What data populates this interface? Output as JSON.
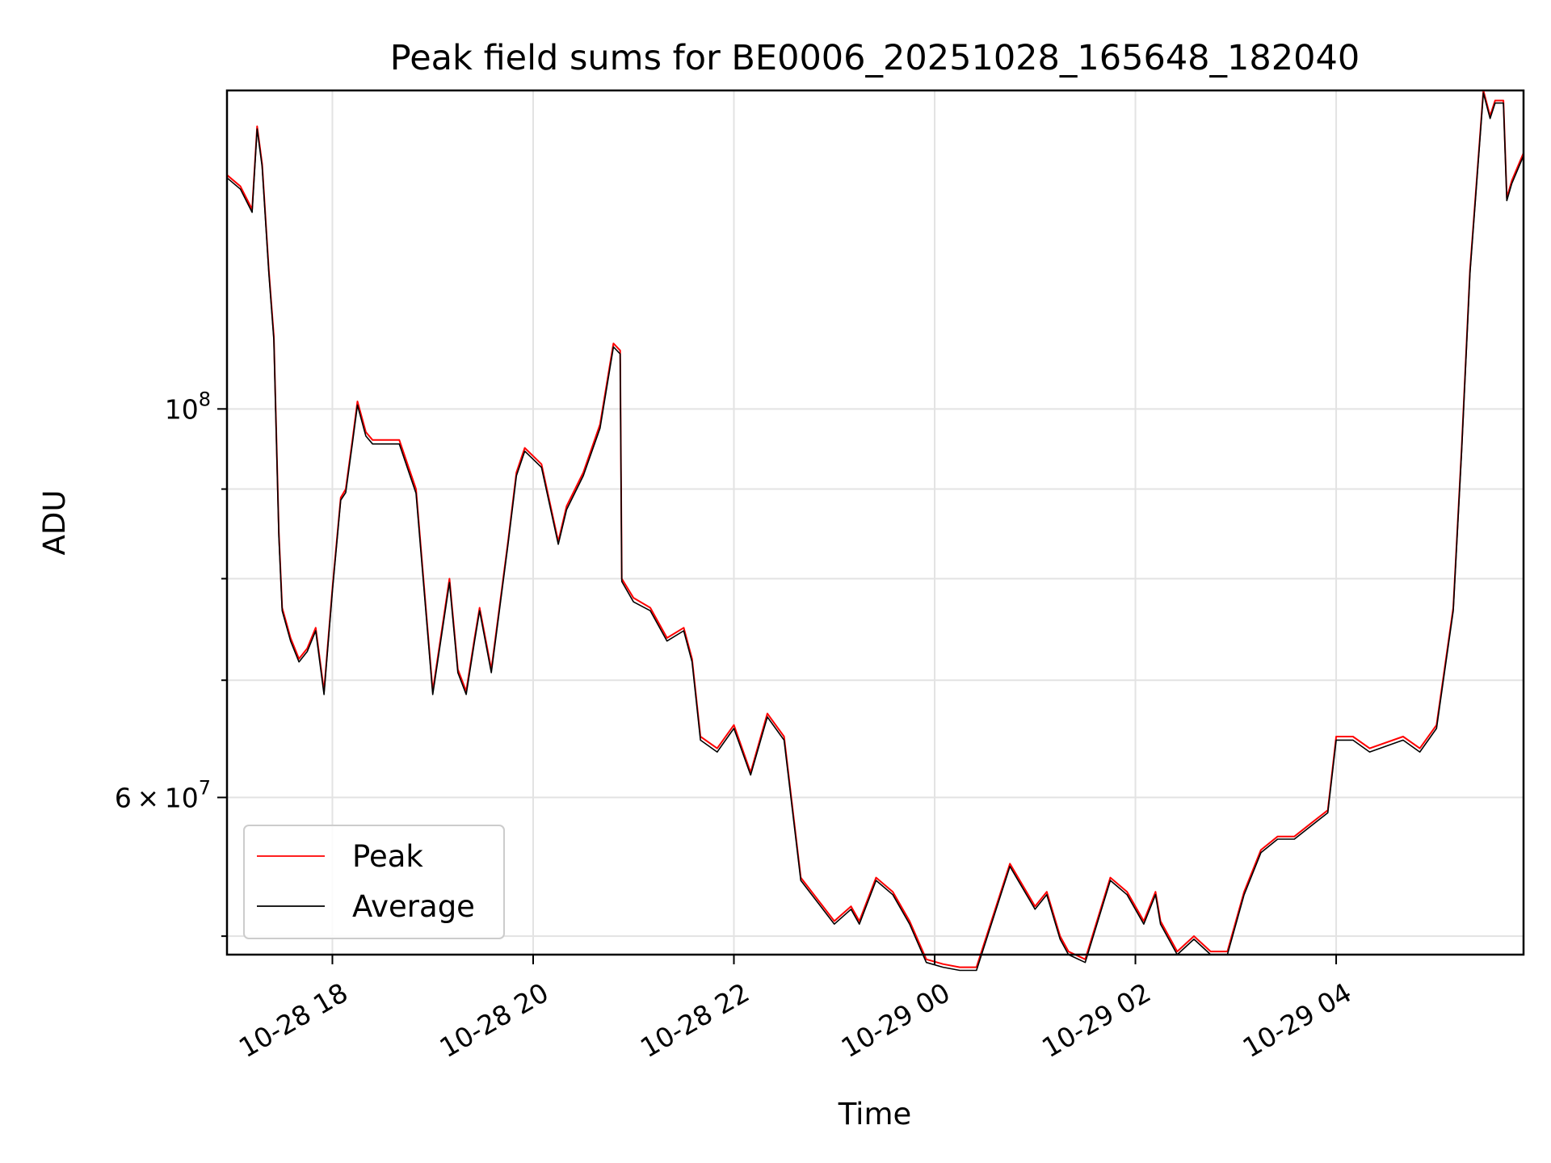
{
  "chart_data": {
    "type": "line",
    "title": "Peak field sums for BE0006_20251028_165648_182040",
    "xlabel": "Time",
    "ylabel": "ADU",
    "x_axis_type": "date",
    "xlim": [
      "2025-10-28 16:57",
      "2025-10-29 05:52"
    ],
    "ylim": [
      48800000,
      152000000
    ],
    "y_scale": "log",
    "grid": true,
    "legend_position": "lower-left",
    "x_ticks": [
      {
        "value": "2025-10-28 18:00",
        "label": "10-28 18"
      },
      {
        "value": "2025-10-28 20:00",
        "label": "10-28 20"
      },
      {
        "value": "2025-10-28 22:00",
        "label": "10-28 22"
      },
      {
        "value": "2025-10-29 00:00",
        "label": "10-29 00"
      },
      {
        "value": "2025-10-29 02:00",
        "label": "10-29 02"
      },
      {
        "value": "2025-10-29 04:00",
        "label": "10-29 04"
      }
    ],
    "y_ticks_major": [
      {
        "value": 100000000,
        "base": "10",
        "exp": "8",
        "mantissa": ""
      },
      {
        "value": 60000000,
        "base": "10",
        "exp": "7",
        "mantissa": "6"
      }
    ],
    "y_ticks_minor": [
      50000000,
      70000000,
      80000000,
      90000000
    ],
    "series": [
      {
        "name": "Peak",
        "color": "#ff0000",
        "x": [
          "2025-10-28 16:57",
          "2025-10-28 17:05",
          "2025-10-28 17:12",
          "2025-10-28 17:15",
          "2025-10-28 17:18",
          "2025-10-28 17:22",
          "2025-10-28 17:25",
          "2025-10-28 17:28",
          "2025-10-28 17:30",
          "2025-10-28 17:35",
          "2025-10-28 17:40",
          "2025-10-28 17:45",
          "2025-10-28 17:50",
          "2025-10-28 17:55",
          "2025-10-28 18:00",
          "2025-10-28 18:05",
          "2025-10-28 18:08",
          "2025-10-28 18:12",
          "2025-10-28 18:15",
          "2025-10-28 18:20",
          "2025-10-28 18:24",
          "2025-10-28 18:30",
          "2025-10-28 18:40",
          "2025-10-28 18:50",
          "2025-10-28 19:00",
          "2025-10-28 19:10",
          "2025-10-28 19:15",
          "2025-10-28 19:20",
          "2025-10-28 19:25",
          "2025-10-28 19:28",
          "2025-10-28 19:35",
          "2025-10-28 19:45",
          "2025-10-28 19:50",
          "2025-10-28 19:55",
          "2025-10-28 20:05",
          "2025-10-28 20:15",
          "2025-10-28 20:20",
          "2025-10-28 20:30",
          "2025-10-28 20:40",
          "2025-10-28 20:48",
          "2025-10-28 20:52",
          "2025-10-28 20:53",
          "2025-10-28 21:00",
          "2025-10-28 21:10",
          "2025-10-28 21:20",
          "2025-10-28 21:30",
          "2025-10-28 21:35",
          "2025-10-28 21:40",
          "2025-10-28 21:50",
          "2025-10-28 22:00",
          "2025-10-28 22:10",
          "2025-10-28 22:20",
          "2025-10-28 22:30",
          "2025-10-28 22:40",
          "2025-10-28 23:00",
          "2025-10-28 23:10",
          "2025-10-28 23:15",
          "2025-10-28 23:25",
          "2025-10-28 23:35",
          "2025-10-28 23:45",
          "2025-10-28 23:55",
          "2025-10-29 00:05",
          "2025-10-29 00:15",
          "2025-10-29 00:25",
          "2025-10-29 00:45",
          "2025-10-29 01:00",
          "2025-10-29 01:07",
          "2025-10-29 01:15",
          "2025-10-29 01:20",
          "2025-10-29 01:30",
          "2025-10-29 01:45",
          "2025-10-29 01:55",
          "2025-10-29 02:05",
          "2025-10-29 02:12",
          "2025-10-29 02:15",
          "2025-10-29 02:25",
          "2025-10-29 02:35",
          "2025-10-29 02:45",
          "2025-10-29 02:55",
          "2025-10-29 03:05",
          "2025-10-29 03:15",
          "2025-10-29 03:25",
          "2025-10-29 03:35",
          "2025-10-29 03:45",
          "2025-10-29 03:55",
          "2025-10-29 04:00",
          "2025-10-29 04:10",
          "2025-10-29 04:20",
          "2025-10-29 04:40",
          "2025-10-29 04:50",
          "2025-10-29 05:00",
          "2025-10-29 05:10",
          "2025-10-29 05:15",
          "2025-10-29 05:20",
          "2025-10-29 05:28",
          "2025-10-29 05:32",
          "2025-10-29 05:35",
          "2025-10-29 05:40",
          "2025-10-29 05:42",
          "2025-10-29 05:45",
          "2025-10-29 05:52"
        ],
        "values": [
          136000000,
          134000000,
          130000000,
          145000000,
          138000000,
          120000000,
          110000000,
          85000000,
          77000000,
          74000000,
          72000000,
          73000000,
          75000000,
          69000000,
          79000000,
          89000000,
          90000000,
          96000000,
          101000000,
          97000000,
          96000000,
          96000000,
          96000000,
          90000000,
          69000000,
          80000000,
          71000000,
          69000000,
          74000000,
          77000000,
          71000000,
          84000000,
          92000000,
          95000000,
          93000000,
          84000000,
          88000000,
          92000000,
          98000000,
          109000000,
          108000000,
          80000000,
          78000000,
          77000000,
          74000000,
          75000000,
          72000000,
          65000000,
          64000000,
          66000000,
          62000000,
          67000000,
          65000000,
          54000000,
          51000000,
          52000000,
          51000000,
          54000000,
          53000000,
          51000000,
          48500000,
          48200000,
          48000000,
          48000000,
          55000000,
          52000000,
          53000000,
          50000000,
          49000000,
          48500000,
          54000000,
          53000000,
          51000000,
          53000000,
          51000000,
          49000000,
          50000000,
          49000000,
          49000000,
          53000000,
          56000000,
          57000000,
          57000000,
          58000000,
          59000000,
          65000000,
          65000000,
          64000000,
          65000000,
          64000000,
          66000000,
          77000000,
          95000000,
          120000000,
          152000000,
          147000000,
          150000000,
          150000000,
          132000000,
          135000000,
          140000000
        ]
      },
      {
        "name": "Average",
        "color": "#000000",
        "x": [
          "2025-10-28 16:57",
          "2025-10-28 17:05",
          "2025-10-28 17:12",
          "2025-10-28 17:15",
          "2025-10-28 17:18",
          "2025-10-28 17:22",
          "2025-10-28 17:25",
          "2025-10-28 17:28",
          "2025-10-28 17:30",
          "2025-10-28 17:35",
          "2025-10-28 17:40",
          "2025-10-28 17:45",
          "2025-10-28 17:50",
          "2025-10-28 17:55",
          "2025-10-28 18:00",
          "2025-10-28 18:05",
          "2025-10-28 18:08",
          "2025-10-28 18:12",
          "2025-10-28 18:15",
          "2025-10-28 18:20",
          "2025-10-28 18:24",
          "2025-10-28 18:30",
          "2025-10-28 18:40",
          "2025-10-28 18:50",
          "2025-10-28 19:00",
          "2025-10-28 19:10",
          "2025-10-28 19:15",
          "2025-10-28 19:20",
          "2025-10-28 19:25",
          "2025-10-28 19:28",
          "2025-10-28 19:35",
          "2025-10-28 19:45",
          "2025-10-28 19:50",
          "2025-10-28 19:55",
          "2025-10-28 20:05",
          "2025-10-28 20:15",
          "2025-10-28 20:20",
          "2025-10-28 20:30",
          "2025-10-28 20:40",
          "2025-10-28 20:48",
          "2025-10-28 20:52",
          "2025-10-28 20:53",
          "2025-10-28 21:00",
          "2025-10-28 21:10",
          "2025-10-28 21:20",
          "2025-10-28 21:30",
          "2025-10-28 21:35",
          "2025-10-28 21:40",
          "2025-10-28 21:50",
          "2025-10-28 22:00",
          "2025-10-28 22:10",
          "2025-10-28 22:20",
          "2025-10-28 22:30",
          "2025-10-28 22:40",
          "2025-10-28 23:00",
          "2025-10-28 23:10",
          "2025-10-28 23:15",
          "2025-10-28 23:25",
          "2025-10-28 23:35",
          "2025-10-28 23:45",
          "2025-10-28 23:55",
          "2025-10-29 00:05",
          "2025-10-29 00:15",
          "2025-10-29 00:25",
          "2025-10-29 00:45",
          "2025-10-29 01:00",
          "2025-10-29 01:07",
          "2025-10-29 01:15",
          "2025-10-29 01:20",
          "2025-10-29 01:30",
          "2025-10-29 01:45",
          "2025-10-29 01:55",
          "2025-10-29 02:05",
          "2025-10-29 02:12",
          "2025-10-29 02:15",
          "2025-10-29 02:25",
          "2025-10-29 02:35",
          "2025-10-29 02:45",
          "2025-10-29 02:55",
          "2025-10-29 03:05",
          "2025-10-29 03:15",
          "2025-10-29 03:25",
          "2025-10-29 03:35",
          "2025-10-29 03:45",
          "2025-10-29 03:55",
          "2025-10-29 04:00",
          "2025-10-29 04:10",
          "2025-10-29 04:20",
          "2025-10-29 04:40",
          "2025-10-29 04:50",
          "2025-10-29 05:00",
          "2025-10-29 05:10",
          "2025-10-29 05:15",
          "2025-10-29 05:20",
          "2025-10-29 05:28",
          "2025-10-29 05:32",
          "2025-10-29 05:35",
          "2025-10-29 05:40",
          "2025-10-29 05:42",
          "2025-10-29 05:45",
          "2025-10-29 05:52"
        ],
        "values": [
          135500000,
          133500000,
          129500000,
          144500000,
          137500000,
          119500000,
          109500000,
          84500000,
          76700000,
          73700000,
          71700000,
          72700000,
          74700000,
          68700000,
          78700000,
          88700000,
          89600000,
          95600000,
          100500000,
          96500000,
          95500000,
          95500000,
          95500000,
          89500000,
          68700000,
          79600000,
          70700000,
          68700000,
          73700000,
          76700000,
          70700000,
          83700000,
          91600000,
          94600000,
          92600000,
          83700000,
          87600000,
          91600000,
          97500000,
          108500000,
          107500000,
          79700000,
          77600000,
          76700000,
          73700000,
          74700000,
          71700000,
          64700000,
          63700000,
          65700000,
          61800000,
          66700000,
          64700000,
          53800000,
          50800000,
          51800000,
          50800000,
          53800000,
          52800000,
          50800000,
          48300000,
          48000000,
          47800000,
          47800000,
          54800000,
          51800000,
          52800000,
          49800000,
          48800000,
          48300000,
          53800000,
          52800000,
          50800000,
          52800000,
          50800000,
          48800000,
          49800000,
          48800000,
          48800000,
          52800000,
          55800000,
          56800000,
          56800000,
          57800000,
          58800000,
          64700000,
          64700000,
          63700000,
          64700000,
          63700000,
          65700000,
          76700000,
          94600000,
          119500000,
          151500000,
          146500000,
          149500000,
          149500000,
          131500000,
          134500000,
          139500000
        ]
      }
    ]
  }
}
